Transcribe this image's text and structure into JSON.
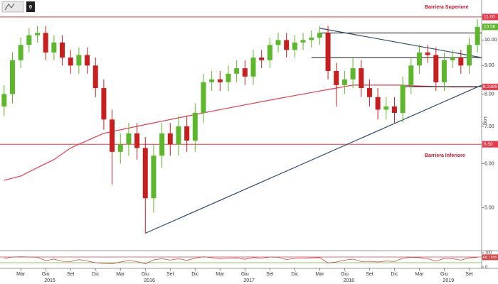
{
  "chart_data": {
    "type": "candlestick",
    "badge": "0",
    "axis_label": "Log",
    "log_scale": true,
    "grid": false,
    "xlim": [
      -0.5,
      57.5
    ],
    "ylim": [
      4.2,
      11.8
    ],
    "yticks": [
      {
        "value": 5,
        "label": "5.00"
      },
      {
        "value": 6,
        "label": "6.00"
      },
      {
        "value": 7,
        "label": "7.00"
      },
      {
        "value": 8,
        "label": "8.00"
      },
      {
        "value": 9,
        "label": "9.00"
      },
      {
        "value": 10,
        "label": "10.00"
      },
      {
        "value": 11,
        "label": "11.00"
      }
    ],
    "xticks": [
      {
        "value": 2,
        "label": "Mar"
      },
      {
        "value": 5,
        "label": "Giu"
      },
      {
        "value": 8,
        "label": "Set"
      },
      {
        "value": 11,
        "label": "Dic"
      },
      {
        "value": 14,
        "label": "Mar"
      },
      {
        "value": 17,
        "label": "Giu"
      },
      {
        "value": 20,
        "label": "Set"
      },
      {
        "value": 23,
        "label": "Dic"
      },
      {
        "value": 26,
        "label": "Mar"
      },
      {
        "value": 29,
        "label": "Giu"
      },
      {
        "value": 32,
        "label": "Set"
      },
      {
        "value": 35,
        "label": "Dic"
      },
      {
        "value": 38,
        "label": "Mar"
      },
      {
        "value": 41,
        "label": "Giu"
      },
      {
        "value": 44,
        "label": "Set"
      },
      {
        "value": 47,
        "label": "Dic"
      },
      {
        "value": 50,
        "label": "Mar"
      },
      {
        "value": 53,
        "label": "Giu"
      },
      {
        "value": 56,
        "label": "Set"
      }
    ],
    "year_ticks": [
      {
        "value": 5.5,
        "label": "2015"
      },
      {
        "value": 17.5,
        "label": "2016"
      },
      {
        "value": 29.5,
        "label": "2017"
      },
      {
        "value": 41.5,
        "label": "2018"
      },
      {
        "value": 53.5,
        "label": "2019"
      }
    ],
    "up_color": "#5cb82a",
    "down_color": "#c81e1e",
    "candles": {
      "open": [
        7.6,
        8.0,
        9.2,
        9.8,
        10.2,
        10.3,
        9.5,
        9.9,
        9.3,
        9.0,
        9.4,
        9.0,
        8.2,
        7.2,
        6.3,
        6.5,
        6.8,
        6.4,
        5.2,
        6.2,
        6.8,
        6.5,
        7.0,
        6.6,
        7.4,
        8.4,
        8.5,
        8.4,
        8.7,
        8.9,
        8.6,
        9.3,
        9.2,
        9.8,
        10.0,
        9.6,
        9.9,
        10.0,
        10.1,
        10.3,
        8.8,
        8.3,
        8.5,
        8.9,
        8.2,
        7.9,
        7.5,
        7.6,
        7.4,
        8.3,
        9.0,
        9.5,
        9.4,
        8.4,
        9.2,
        9.3,
        9.0,
        9.8
      ],
      "high": [
        8.3,
        9.5,
        10.1,
        10.5,
        10.6,
        10.6,
        10.2,
        10.2,
        9.6,
        9.7,
        9.7,
        9.3,
        8.5,
        7.5,
        6.8,
        7.1,
        7.1,
        6.7,
        6.5,
        7.1,
        7.1,
        7.3,
        7.3,
        7.7,
        8.7,
        8.8,
        8.8,
        9.0,
        9.2,
        9.2,
        9.6,
        9.6,
        10.1,
        10.3,
        10.3,
        10.2,
        10.3,
        10.4,
        10.6,
        10.6,
        9.1,
        8.8,
        9.3,
        9.2,
        8.5,
        8.2,
        7.9,
        7.9,
        8.6,
        9.3,
        9.8,
        9.8,
        9.7,
        9.5,
        9.6,
        9.6,
        10.1,
        10.9
      ],
      "low": [
        7.3,
        7.7,
        8.9,
        9.5,
        9.9,
        9.2,
        9.2,
        9.0,
        8.7,
        8.7,
        8.7,
        7.9,
        6.9,
        5.5,
        6.0,
        6.2,
        6.1,
        4.5,
        4.9,
        5.9,
        6.2,
        6.2,
        6.3,
        6.3,
        7.1,
        8.1,
        8.1,
        8.1,
        8.4,
        8.3,
        8.3,
        8.9,
        8.9,
        9.5,
        9.3,
        9.3,
        9.6,
        9.7,
        9.8,
        8.5,
        7.6,
        8.0,
        8.2,
        7.9,
        7.6,
        7.2,
        7.2,
        7.1,
        7.1,
        8.0,
        8.7,
        9.1,
        8.1,
        8.1,
        8.9,
        8.7,
        8.7,
        9.5
      ],
      "close": [
        8.0,
        9.2,
        9.8,
        10.2,
        10.3,
        9.5,
        9.9,
        9.3,
        9.0,
        9.4,
        9.0,
        8.2,
        7.2,
        6.3,
        6.5,
        6.8,
        6.4,
        5.2,
        6.2,
        6.8,
        6.5,
        7.0,
        6.6,
        7.4,
        8.4,
        8.5,
        8.4,
        8.7,
        8.9,
        8.6,
        9.3,
        9.2,
        9.8,
        10.0,
        9.6,
        9.9,
        10.0,
        10.1,
        10.3,
        8.8,
        8.3,
        8.5,
        8.9,
        8.2,
        7.9,
        7.5,
        7.6,
        7.4,
        8.3,
        9.0,
        9.5,
        9.4,
        8.4,
        9.2,
        9.3,
        9.0,
        9.8,
        10.56
      ]
    },
    "ma": {
      "color": "#e8394a",
      "values": [
        5.6,
        5.65,
        5.7,
        5.8,
        5.9,
        6.0,
        6.1,
        6.25,
        6.4,
        6.5,
        6.6,
        6.7,
        6.8,
        6.85,
        6.9,
        6.95,
        7.0,
        7.05,
        7.1,
        7.15,
        7.2,
        7.25,
        7.3,
        7.35,
        7.4,
        7.45,
        7.5,
        7.55,
        7.6,
        7.65,
        7.7,
        7.75,
        7.8,
        7.85,
        7.9,
        7.95,
        8.0,
        8.05,
        8.1,
        8.15,
        8.2,
        8.25,
        8.3,
        8.3,
        8.3,
        8.3,
        8.3,
        8.3,
        8.3,
        8.28,
        8.27,
        8.26,
        8.25,
        8.25,
        8.24,
        8.24,
        8.24,
        8.2389
      ]
    },
    "levels": [
      {
        "value": 11,
        "label": "11.00",
        "name": "Barriera Superiore",
        "color": "#e8394a"
      },
      {
        "value": 6.5,
        "label": "6.50",
        "name": "Barriera Inferiore",
        "color": "#e8394a"
      }
    ],
    "support_lines": [
      {
        "start": 38,
        "value": 10.3
      },
      {
        "start": 37,
        "value": 9.3
      },
      {
        "start": 48,
        "value": 8.25
      }
    ],
    "trendlines": [
      {
        "color": "#2b4a6f",
        "x": [
          17,
          57.5
        ],
        "y": [
          4.5,
          8.3
        ]
      },
      {
        "color": "#2b4a6f",
        "x": [
          38,
          57.5
        ],
        "y": [
          10.5,
          9.3
        ]
      }
    ],
    "oscillator": {
      "color": "#d04040",
      "ylim": [
        0,
        100
      ],
      "yticks": [
        0,
        100
      ],
      "bands": [
        30,
        70
      ],
      "values": [
        60,
        70,
        72,
        70,
        68,
        45,
        55,
        40,
        38,
        52,
        42,
        30,
        25,
        22,
        35,
        45,
        38,
        22,
        50,
        58,
        48,
        58,
        46,
        62,
        72,
        65,
        58,
        62,
        64,
        54,
        66,
        62,
        70,
        68,
        52,
        60,
        62,
        64,
        66,
        28,
        35,
        48,
        55,
        38,
        40,
        35,
        42,
        38,
        62,
        68,
        66,
        58,
        40,
        60,
        58,
        48,
        64,
        68.1699
      ]
    }
  }
}
